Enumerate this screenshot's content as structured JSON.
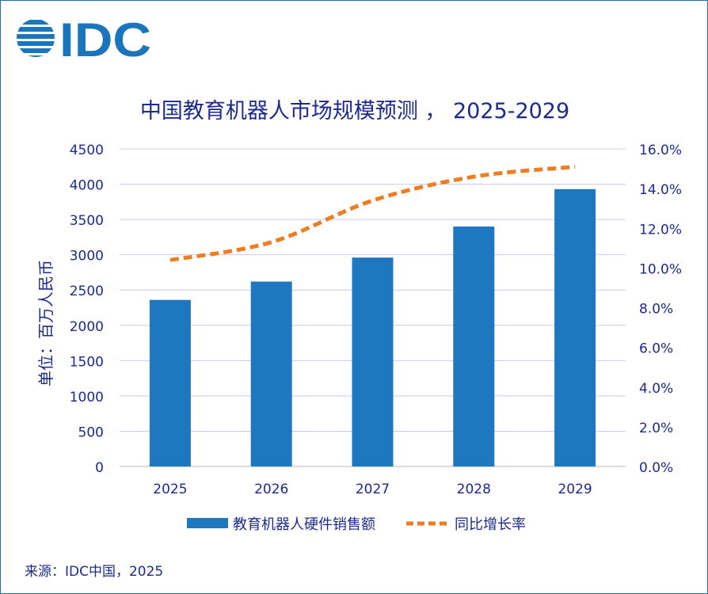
{
  "brand": {
    "logo_text": "IDC",
    "color": "#1b75bb"
  },
  "source_note": "来源：IDC中国，2025",
  "chart_data": {
    "type": "bar",
    "title": "中国教育机器人市场规模预测 ， 2025-2029",
    "categories": [
      "2025",
      "2026",
      "2027",
      "2028",
      "2029"
    ],
    "ylabel": "单位：百万人民币",
    "ylim": [
      0,
      4500
    ],
    "y_ticks": [
      "0",
      "500",
      "1000",
      "1500",
      "2000",
      "2500",
      "3000",
      "3500",
      "4000",
      "4500"
    ],
    "y2lim": [
      0,
      16
    ],
    "y2_ticks": [
      "0.0%",
      "2.0%",
      "4.0%",
      "6.0%",
      "8.0%",
      "10.0%",
      "12.0%",
      "14.0%",
      "16.0%"
    ],
    "grid": true,
    "legend_position": "bottom",
    "series": [
      {
        "name": "教育机器人硬件销售额",
        "type": "bar",
        "axis": "left",
        "color": "#1f77bf",
        "values": [
          2360,
          2620,
          2960,
          3400,
          3930
        ]
      },
      {
        "name": "同比增长率",
        "type": "line",
        "axis": "right",
        "color": "#ee7d22",
        "dashed": true,
        "values": [
          10.4,
          11.3,
          13.4,
          14.6,
          15.1
        ]
      }
    ]
  }
}
